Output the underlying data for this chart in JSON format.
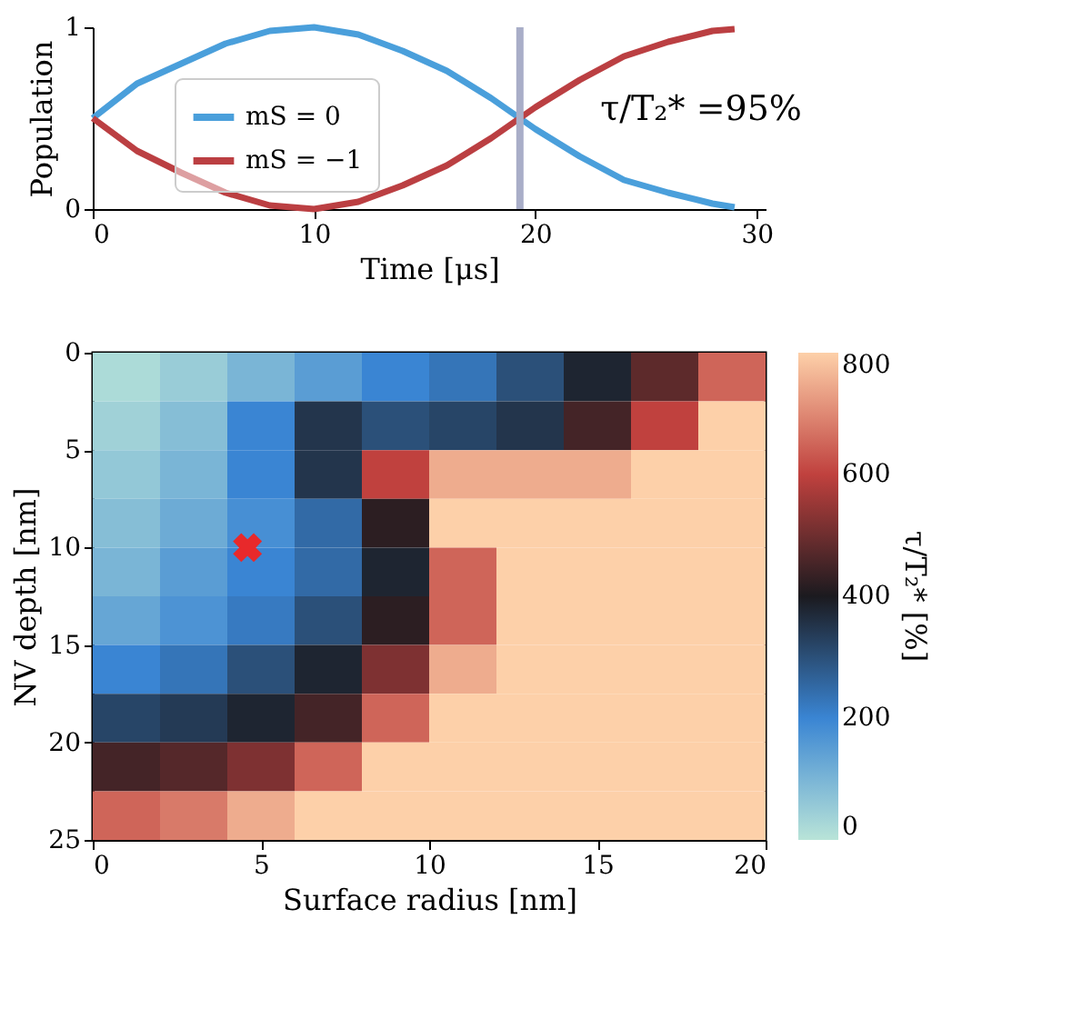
{
  "chart_data": [
    {
      "type": "line",
      "xlabel": "Time [μs]",
      "ylabel": "Population",
      "xlim": [
        0,
        30.4
      ],
      "ylim": [
        0,
        1
      ],
      "xticks": [
        0,
        10,
        20,
        30
      ],
      "yticks": [
        0,
        1
      ],
      "grid": false,
      "legend": "left",
      "marker": "none",
      "line_style": "solid",
      "x": [
        0,
        2,
        4,
        6,
        8,
        10,
        12,
        14,
        16,
        18,
        20,
        22,
        24,
        26,
        28,
        29
      ],
      "series": [
        {
          "name": "mS = 0",
          "color": "#4a9fdb",
          "values": [
            0.5,
            0.69,
            0.8,
            0.91,
            0.98,
            1.0,
            0.96,
            0.87,
            0.76,
            0.61,
            0.44,
            0.29,
            0.16,
            0.09,
            0.03,
            0.01
          ]
        },
        {
          "name": "mS = −1",
          "color": "#bb3f42",
          "values": [
            0.5,
            0.32,
            0.2,
            0.09,
            0.02,
            0.0,
            0.04,
            0.13,
            0.24,
            0.39,
            0.56,
            0.71,
            0.84,
            0.92,
            0.98,
            0.99
          ]
        }
      ],
      "ref_lines": [
        {
          "axis": "x",
          "value": 19.3,
          "color": "#a9aec8"
        }
      ],
      "annotations": [
        "τ/T₂* =95%"
      ]
    },
    {
      "type": "heatmap",
      "xlabel": "Surface radius [nm]",
      "ylabel": "NV depth [nm]",
      "clabel": "τ/T₂* [%]",
      "xlim": [
        0,
        20
      ],
      "ylim": [
        25,
        0
      ],
      "xticks": [
        0,
        5,
        10,
        15,
        20
      ],
      "yticks": [
        0,
        5,
        10,
        15,
        20,
        25
      ],
      "clim": [
        0,
        800
      ],
      "cticks": [
        0,
        200,
        400,
        600,
        800
      ],
      "grid": false,
      "cells": [
        [
          20,
          50,
          100,
          150,
          200,
          230,
          300,
          380,
          480,
          650
        ],
        [
          40,
          80,
          200,
          350,
          300,
          320,
          350,
          450,
          600,
          800
        ],
        [
          60,
          100,
          200,
          350,
          600,
          750,
          750,
          750,
          800,
          800
        ],
        [
          80,
          120,
          180,
          250,
          420,
          800,
          800,
          800,
          800,
          800
        ],
        [
          100,
          150,
          200,
          250,
          380,
          650,
          800,
          800,
          800,
          800
        ],
        [
          130,
          170,
          220,
          300,
          420,
          650,
          800,
          800,
          800,
          800
        ],
        [
          200,
          230,
          300,
          380,
          520,
          750,
          800,
          800,
          800,
          800
        ],
        [
          320,
          340,
          380,
          450,
          650,
          800,
          800,
          800,
          800,
          800
        ],
        [
          450,
          470,
          520,
          650,
          800,
          800,
          800,
          800,
          800,
          800
        ],
        [
          650,
          680,
          750,
          800,
          800,
          800,
          800,
          800,
          800,
          800
        ]
      ],
      "series": [
        {
          "type": "scatter",
          "x": [
            4.6
          ],
          "values": [
            10
          ],
          "color": "#e8292b",
          "marker": "cross"
        }
      ]
    }
  ]
}
